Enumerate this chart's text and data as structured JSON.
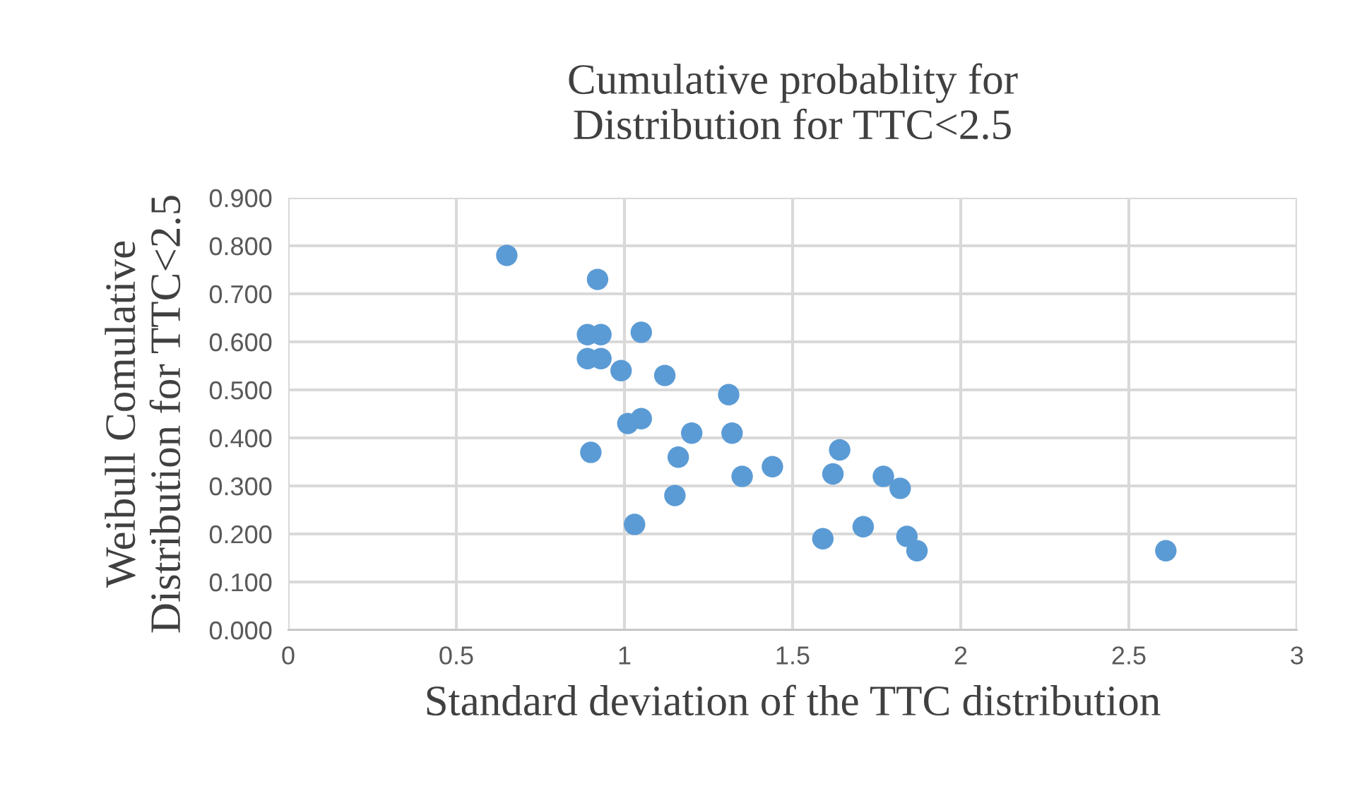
{
  "chart_data": {
    "type": "scatter",
    "title": "Cumulative probablity for\nDistribution for TTC<2.5",
    "xlabel": "Standard deviation of the TTC distribution",
    "ylabel": "Weibull Comulative\nDistribution for TTC<2.5",
    "series": [
      {
        "color": "#5b9bd5",
        "x": [
          0.65,
          0.92,
          0.89,
          0.93,
          1.05,
          0.89,
          0.93,
          0.99,
          1.12,
          1.31,
          1.01,
          1.05,
          1.2,
          1.32,
          0.9,
          1.16,
          1.35,
          1.44,
          1.15,
          1.03,
          1.62,
          1.64,
          1.77,
          1.82,
          1.59,
          1.71,
          1.84,
          1.87,
          2.61
        ],
        "values": [
          0.78,
          0.73,
          0.615,
          0.615,
          0.62,
          0.565,
          0.565,
          0.54,
          0.53,
          0.49,
          0.43,
          0.44,
          0.41,
          0.41,
          0.37,
          0.36,
          0.32,
          0.34,
          0.28,
          0.22,
          0.325,
          0.375,
          0.32,
          0.295,
          0.19,
          0.215,
          0.195,
          0.165,
          0.165
        ]
      }
    ],
    "xlim": [
      0,
      3
    ],
    "xticks": [
      0,
      0.5,
      1,
      1.5,
      2,
      2.5,
      3
    ],
    "ylim": [
      0,
      0.9
    ],
    "yticks": [
      {
        "value": 0,
        "label": "0.000"
      },
      {
        "value": 0.1,
        "label": "0.100"
      },
      {
        "value": 0.2,
        "label": "0.200"
      },
      {
        "value": 0.3,
        "label": "0.300"
      },
      {
        "value": 0.4,
        "label": "0.400"
      },
      {
        "value": 0.5,
        "label": "0.500"
      },
      {
        "value": 0.6,
        "label": "0.600"
      },
      {
        "value": 0.7,
        "label": "0.700"
      },
      {
        "value": 0.8,
        "label": "0.800"
      },
      {
        "value": 0.9,
        "label": "0.900"
      }
    ],
    "grid": true,
    "marker": "circle",
    "legend": false
  }
}
